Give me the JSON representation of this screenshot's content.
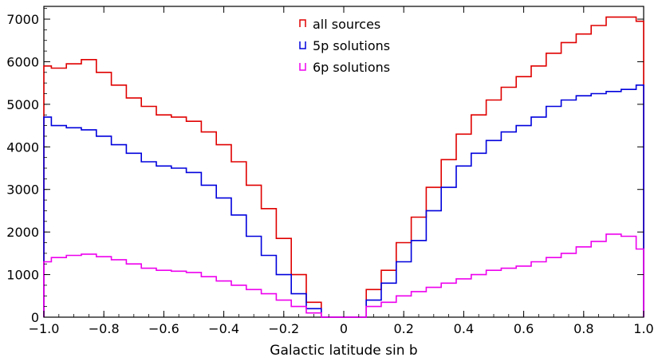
{
  "chart_data": {
    "type": "line",
    "title": "",
    "xlabel": "Galactic latitude sin b",
    "ylabel": "",
    "xlim": [
      -1.0,
      1.0
    ],
    "ylim": [
      0,
      7300
    ],
    "xticks": [
      "−1.0",
      "−0.8",
      "−0.6",
      "−0.4",
      "−0.2",
      "0",
      "0.2",
      "0.4",
      "0.6",
      "0.8",
      "1.0"
    ],
    "xtick_values": [
      -1.0,
      -0.8,
      -0.6,
      -0.4,
      -0.2,
      0,
      0.2,
      0.4,
      0.6,
      0.8,
      1.0
    ],
    "yticks": [
      "0",
      "1000",
      "2000",
      "3000",
      "4000",
      "5000",
      "6000",
      "7000"
    ],
    "ytick_values": [
      0,
      1000,
      2000,
      3000,
      4000,
      5000,
      6000,
      7000
    ],
    "legend_position": "top-center",
    "grid": false,
    "step_histogram": true,
    "x": [
      -1.0,
      -0.95,
      -0.9,
      -0.85,
      -0.8,
      -0.75,
      -0.7,
      -0.65,
      -0.6,
      -0.55,
      -0.5,
      -0.45,
      -0.4,
      -0.35,
      -0.3,
      -0.25,
      -0.2,
      -0.15,
      -0.1,
      -0.05,
      0.0,
      0.05,
      0.1,
      0.15,
      0.2,
      0.25,
      0.3,
      0.35,
      0.4,
      0.45,
      0.5,
      0.55,
      0.6,
      0.65,
      0.7,
      0.75,
      0.8,
      0.85,
      0.9,
      0.95,
      1.0
    ],
    "series": [
      {
        "name": "all sources",
        "color": "#e00000",
        "values": [
          5900,
          5850,
          5950,
          6050,
          5750,
          5450,
          5150,
          4950,
          4750,
          4700,
          4600,
          4350,
          4050,
          3650,
          3100,
          2550,
          1850,
          1000,
          350,
          0,
          0,
          0,
          650,
          1100,
          1750,
          2350,
          3050,
          3700,
          4300,
          4750,
          5100,
          5400,
          5650,
          5900,
          6200,
          6450,
          6650,
          6850,
          7050,
          7050,
          6950
        ]
      },
      {
        "name": "5p solutions",
        "color": "#0000dd",
        "values": [
          4700,
          4500,
          4450,
          4400,
          4250,
          4050,
          3850,
          3650,
          3550,
          3500,
          3400,
          3100,
          2800,
          2400,
          1900,
          1450,
          1000,
          550,
          200,
          0,
          0,
          0,
          400,
          800,
          1300,
          1800,
          2500,
          3050,
          3550,
          3850,
          4150,
          4350,
          4500,
          4700,
          4950,
          5100,
          5200,
          5250,
          5300,
          5350,
          5450
        ]
      },
      {
        "name": "6p solutions",
        "color": "#ee00ee",
        "values": [
          1300,
          1400,
          1450,
          1480,
          1420,
          1350,
          1250,
          1150,
          1100,
          1080,
          1050,
          950,
          850,
          750,
          650,
          550,
          400,
          250,
          100,
          0,
          0,
          0,
          250,
          350,
          500,
          600,
          700,
          800,
          900,
          1000,
          1100,
          1150,
          1200,
          1300,
          1400,
          1500,
          1650,
          1780,
          1950,
          1900,
          1600
        ]
      }
    ]
  }
}
